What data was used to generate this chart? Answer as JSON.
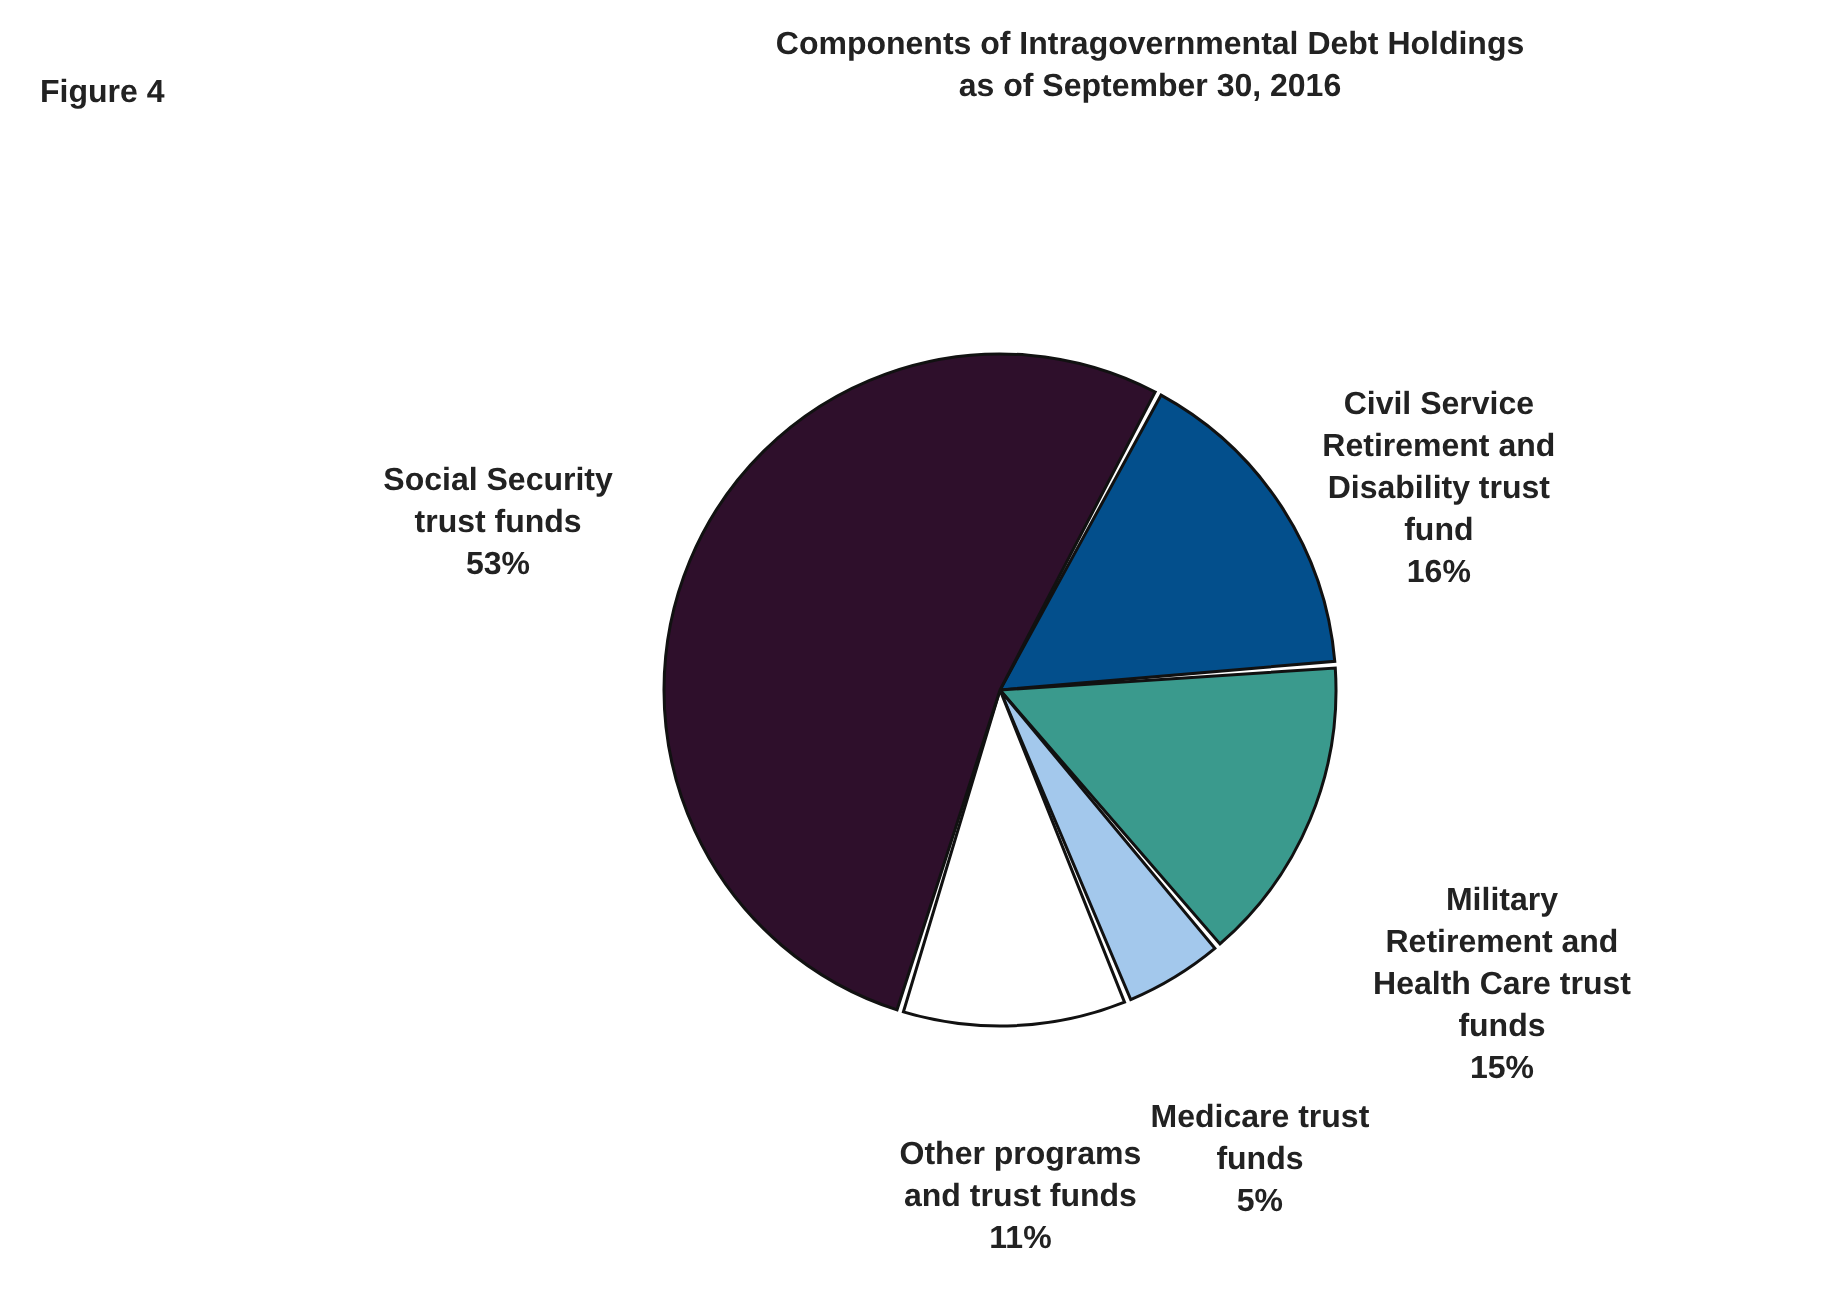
{
  "chart_data": {
    "type": "pie",
    "title": [
      "Components of Intragovernmental Debt Holdings",
      "as of September 30, 2016"
    ],
    "annotations": [
      "Figure 4"
    ],
    "categories": [
      "Civil Service Retirement and Disability trust fund",
      "Military Retirement and Health Care trust funds",
      "Medicare trust funds",
      "Other programs and trust funds",
      "Social Security trust funds"
    ],
    "values": [
      16,
      15,
      5,
      11,
      53
    ],
    "value_labels": [
      "16%",
      "15%",
      "5%",
      "11%",
      "53%"
    ],
    "colors": [
      "#034f8c",
      "#3a9a8d",
      "#a3c8ec",
      "#ffffff",
      "#2e0f2b"
    ]
  }
}
